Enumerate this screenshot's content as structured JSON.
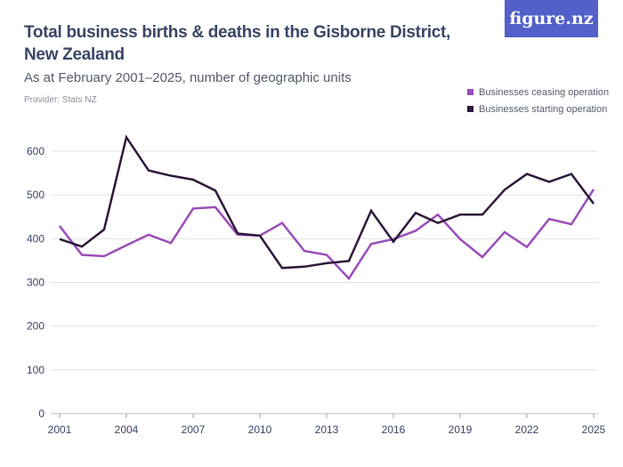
{
  "header": {
    "title": "Total business births & deaths in the Gisborne District, New Zealand",
    "subtitle": "As at February 2001–2025, number of geographic units",
    "provider": "Provider: Stats NZ",
    "logo": "figure.nz"
  },
  "chart_data": {
    "type": "line",
    "x": [
      2001,
      2002,
      2003,
      2004,
      2005,
      2006,
      2007,
      2008,
      2009,
      2010,
      2011,
      2012,
      2013,
      2014,
      2015,
      2016,
      2017,
      2018,
      2019,
      2020,
      2021,
      2022,
      2023,
      2024,
      2025
    ],
    "series": [
      {
        "name": "Businesses ceasing operation",
        "color": "#9b4dba",
        "values": [
          429,
          363,
          360,
          385,
          409,
          390,
          469,
          472,
          409,
          407,
          436,
          372,
          363,
          309,
          388,
          399,
          418,
          455,
          399,
          358,
          415,
          381,
          445,
          433,
          513
        ]
      },
      {
        "name": "Businesses starting operation",
        "color": "#2e1a3a",
        "values": [
          399,
          382,
          421,
          632,
          556,
          544,
          535,
          510,
          412,
          407,
          333,
          336,
          344,
          349,
          464,
          393,
          459,
          436,
          455,
          455,
          512,
          548,
          530,
          548,
          480
        ]
      }
    ],
    "ylim": [
      0,
      600
    ],
    "yticks": [
      0,
      100,
      200,
      300,
      400,
      500,
      600
    ],
    "xticks": [
      2001,
      2004,
      2007,
      2010,
      2013,
      2016,
      2019,
      2022,
      2025
    ],
    "grid": true,
    "legend": "top-right"
  }
}
